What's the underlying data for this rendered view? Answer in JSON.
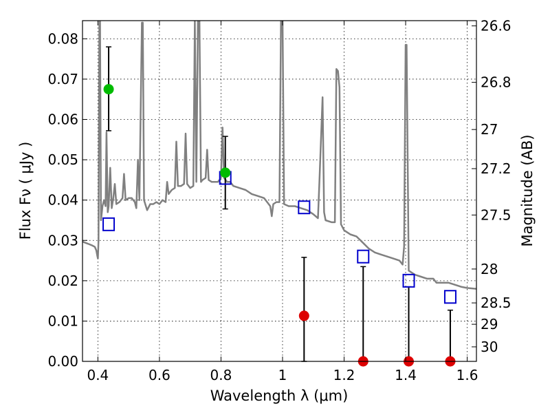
{
  "chart_data": {
    "type": "scatter",
    "xlabel": "Wavelength  λ (μm)",
    "ylabel": "Flux  Fν  ( μJy )",
    "y2label": "Magnitude (AB)",
    "xlim": [
      0.35,
      1.63
    ],
    "ylim": [
      0.0,
      0.0845
    ],
    "grid": true,
    "x_ticks": [
      {
        "value": 0.4,
        "label": "0.4"
      },
      {
        "value": 0.6,
        "label": "0.6"
      },
      {
        "value": 0.8,
        "label": "0.8"
      },
      {
        "value": 1.0,
        "label": "1"
      },
      {
        "value": 1.2,
        "label": "1.2"
      },
      {
        "value": 1.4,
        "label": "1.4"
      },
      {
        "value": 1.6,
        "label": "1.6"
      }
    ],
    "y_ticks": [
      {
        "value": 0.0,
        "label": "0.00"
      },
      {
        "value": 0.01,
        "label": "0.01"
      },
      {
        "value": 0.02,
        "label": "0.02"
      },
      {
        "value": 0.03,
        "label": "0.03"
      },
      {
        "value": 0.04,
        "label": "0.04"
      },
      {
        "value": 0.05,
        "label": "0.05"
      },
      {
        "value": 0.06,
        "label": "0.06"
      },
      {
        "value": 0.07,
        "label": "0.07"
      },
      {
        "value": 0.08,
        "label": "0.08"
      }
    ],
    "y2_ticks": [
      {
        "flux": 0.0832,
        "label": "26.6"
      },
      {
        "flux": 0.0692,
        "label": "26.8"
      },
      {
        "flux": 0.0575,
        "label": "27"
      },
      {
        "flux": 0.0478,
        "label": "27.2"
      },
      {
        "flux": 0.0363,
        "label": "27.5"
      },
      {
        "flux": 0.0229,
        "label": "28"
      },
      {
        "flux": 0.0145,
        "label": "28.5"
      },
      {
        "flux": 0.0092,
        "label": "29"
      },
      {
        "flux": 0.0036,
        "label": "30"
      }
    ],
    "colors": {
      "template": "#808080",
      "detection": "#00bb00",
      "nondetection": "#dd0000",
      "model": "#0000cc",
      "errorbar": "#000000"
    },
    "template_spectrum": {
      "name": "",
      "points": [
        [
          0.35,
          0.0297
        ],
        [
          0.36,
          0.0294
        ],
        [
          0.37,
          0.0291
        ],
        [
          0.38,
          0.0288
        ],
        [
          0.39,
          0.0284
        ],
        [
          0.395,
          0.0275
        ],
        [
          0.398,
          0.0262
        ],
        [
          0.4,
          0.0255
        ],
        [
          0.402,
          0.03
        ],
        [
          0.405,
          0.0845
        ],
        [
          0.407,
          0.0845
        ],
        [
          0.41,
          0.035
        ],
        [
          0.415,
          0.0385
        ],
        [
          0.42,
          0.04
        ],
        [
          0.425,
          0.0385
        ],
        [
          0.428,
          0.0568
        ],
        [
          0.432,
          0.037
        ],
        [
          0.435,
          0.0385
        ],
        [
          0.44,
          0.048
        ],
        [
          0.445,
          0.038
        ],
        [
          0.45,
          0.0405
        ],
        [
          0.455,
          0.044
        ],
        [
          0.46,
          0.039
        ],
        [
          0.47,
          0.0395
        ],
        [
          0.48,
          0.0405
        ],
        [
          0.485,
          0.0465
        ],
        [
          0.49,
          0.04
        ],
        [
          0.5,
          0.0405
        ],
        [
          0.51,
          0.0405
        ],
        [
          0.52,
          0.0395
        ],
        [
          0.525,
          0.038
        ],
        [
          0.53,
          0.05
        ],
        [
          0.535,
          0.04
        ],
        [
          0.543,
          0.084
        ],
        [
          0.546,
          0.084
        ],
        [
          0.55,
          0.04
        ],
        [
          0.56,
          0.0375
        ],
        [
          0.57,
          0.039
        ],
        [
          0.58,
          0.039
        ],
        [
          0.59,
          0.0395
        ],
        [
          0.6,
          0.039
        ],
        [
          0.61,
          0.04
        ],
        [
          0.62,
          0.0395
        ],
        [
          0.625,
          0.0445
        ],
        [
          0.63,
          0.0415
        ],
        [
          0.64,
          0.0425
        ],
        [
          0.65,
          0.043
        ],
        [
          0.655,
          0.0545
        ],
        [
          0.66,
          0.0435
        ],
        [
          0.67,
          0.0435
        ],
        [
          0.68,
          0.044
        ],
        [
          0.685,
          0.0565
        ],
        [
          0.69,
          0.044
        ],
        [
          0.7,
          0.043
        ],
        [
          0.71,
          0.0435
        ],
        [
          0.715,
          0.0845
        ],
        [
          0.72,
          0.0445
        ],
        [
          0.725,
          0.0845
        ],
        [
          0.73,
          0.0845
        ],
        [
          0.735,
          0.0445
        ],
        [
          0.74,
          0.045
        ],
        [
          0.75,
          0.0455
        ],
        [
          0.755,
          0.0525
        ],
        [
          0.76,
          0.045
        ],
        [
          0.77,
          0.0445
        ],
        [
          0.78,
          0.0445
        ],
        [
          0.79,
          0.0445
        ],
        [
          0.8,
          0.0455
        ],
        [
          0.805,
          0.058
        ],
        [
          0.81,
          0.0455
        ],
        [
          0.82,
          0.0445
        ],
        [
          0.83,
          0.0445
        ],
        [
          0.84,
          0.0435
        ],
        [
          0.86,
          0.043
        ],
        [
          0.88,
          0.0425
        ],
        [
          0.9,
          0.0415
        ],
        [
          0.92,
          0.041
        ],
        [
          0.94,
          0.0405
        ],
        [
          0.95,
          0.0395
        ],
        [
          0.96,
          0.0385
        ],
        [
          0.965,
          0.036
        ],
        [
          0.97,
          0.039
        ],
        [
          0.98,
          0.0395
        ],
        [
          0.99,
          0.0395
        ],
        [
          0.995,
          0.0845
        ],
        [
          1.0,
          0.0845
        ],
        [
          1.005,
          0.039
        ],
        [
          1.02,
          0.0385
        ],
        [
          1.04,
          0.0385
        ],
        [
          1.06,
          0.038
        ],
        [
          1.08,
          0.0375
        ],
        [
          1.1,
          0.0365
        ],
        [
          1.115,
          0.0355
        ],
        [
          1.12,
          0.045
        ],
        [
          1.13,
          0.0655
        ],
        [
          1.135,
          0.037
        ],
        [
          1.14,
          0.035
        ],
        [
          1.16,
          0.0345
        ],
        [
          1.17,
          0.0345
        ],
        [
          1.175,
          0.0725
        ],
        [
          1.18,
          0.072
        ],
        [
          1.185,
          0.068
        ],
        [
          1.19,
          0.034
        ],
        [
          1.2,
          0.0325
        ],
        [
          1.22,
          0.0315
        ],
        [
          1.24,
          0.031
        ],
        [
          1.26,
          0.0295
        ],
        [
          1.28,
          0.028
        ],
        [
          1.3,
          0.027
        ],
        [
          1.32,
          0.0265
        ],
        [
          1.34,
          0.026
        ],
        [
          1.36,
          0.0255
        ],
        [
          1.38,
          0.025
        ],
        [
          1.39,
          0.024
        ],
        [
          1.395,
          0.0285
        ],
        [
          1.4,
          0.0785
        ],
        [
          1.403,
          0.0785
        ],
        [
          1.41,
          0.0225
        ],
        [
          1.43,
          0.0215
        ],
        [
          1.45,
          0.021
        ],
        [
          1.47,
          0.0205
        ],
        [
          1.49,
          0.0205
        ],
        [
          1.5,
          0.0195
        ],
        [
          1.52,
          0.0195
        ],
        [
          1.54,
          0.0195
        ],
        [
          1.56,
          0.019
        ],
        [
          1.58,
          0.0185
        ],
        [
          1.6,
          0.0182
        ],
        [
          1.63,
          0.018
        ]
      ]
    },
    "model_points": [
      {
        "x": 0.435,
        "y": 0.034
      },
      {
        "x": 0.814,
        "y": 0.0455
      },
      {
        "x": 1.07,
        "y": 0.0382
      },
      {
        "x": 1.262,
        "y": 0.026
      },
      {
        "x": 1.41,
        "y": 0.02
      },
      {
        "x": 1.545,
        "y": 0.016
      }
    ],
    "observed_points": [
      {
        "x": 0.435,
        "y": 0.0675,
        "err_low": 0.0572,
        "err_high": 0.078,
        "detected": true
      },
      {
        "x": 0.814,
        "y": 0.0468,
        "err_low": 0.0378,
        "err_high": 0.0558,
        "detected": true
      },
      {
        "x": 1.07,
        "y": 0.0113,
        "err_low": 0.0,
        "err_high": 0.0258,
        "detected": false
      },
      {
        "x": 1.262,
        "y": 0.0,
        "err_low": 0.0,
        "err_high": 0.0235,
        "detected": false
      },
      {
        "x": 1.41,
        "y": 0.0,
        "err_low": 0.0,
        "err_high": 0.0185,
        "detected": false
      },
      {
        "x": 1.545,
        "y": 0.0,
        "err_low": 0.0,
        "err_high": 0.0127,
        "detected": false
      }
    ]
  }
}
